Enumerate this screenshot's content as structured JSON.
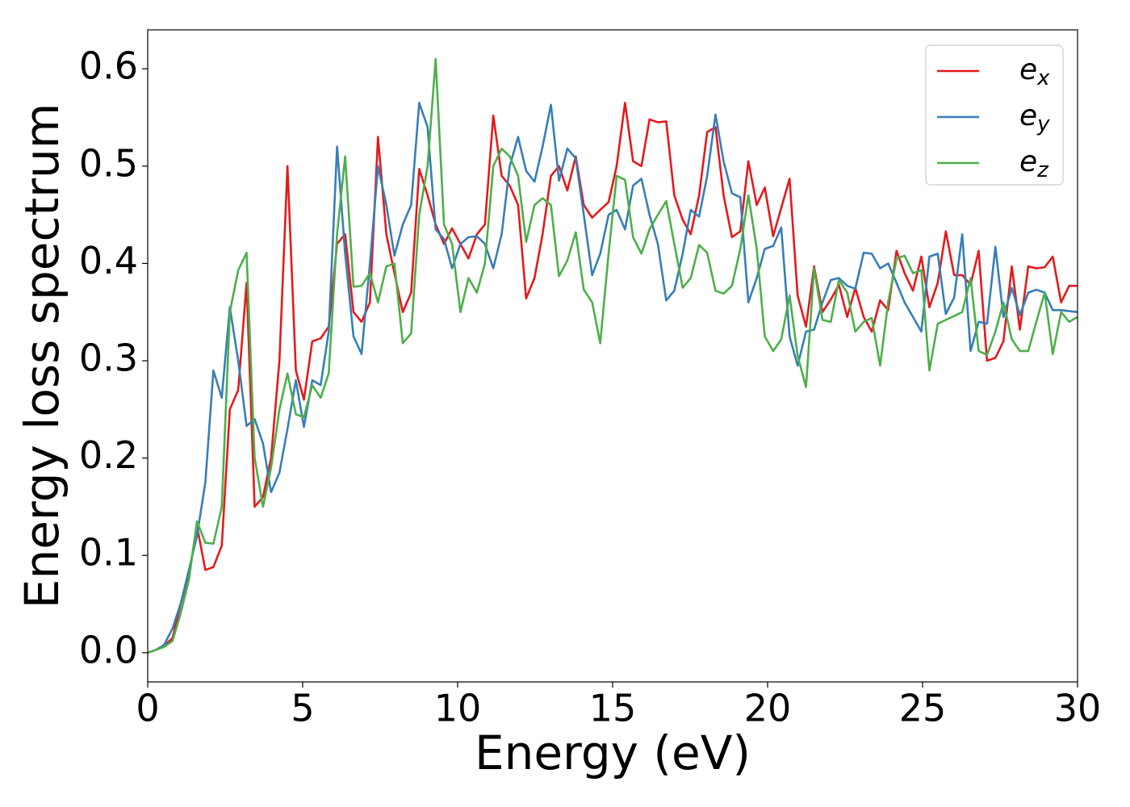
{
  "chart_data": {
    "type": "line",
    "xlabel": "Energy (eV)",
    "ylabel": "Energy loss spectrum",
    "xlim": [
      0,
      30
    ],
    "ylim": [
      -0.03,
      0.64
    ],
    "xticks": [
      0,
      5,
      10,
      15,
      20,
      25,
      30
    ],
    "yticks": [
      {
        "value": 0,
        "label": "0.0"
      },
      0.1,
      0.2,
      0.3,
      0.4,
      0.5,
      0.6
    ],
    "legend": "upper right",
    "grid": false,
    "x": [
      0,
      0.27,
      0.53,
      0.8,
      1.06,
      1.33,
      1.59,
      1.86,
      2.12,
      2.39,
      2.65,
      2.92,
      3.19,
      3.45,
      3.72,
      3.98,
      4.25,
      4.51,
      4.78,
      5.04,
      5.31,
      5.58,
      5.84,
      6.11,
      6.37,
      6.64,
      6.9,
      7.17,
      7.43,
      7.7,
      7.96,
      8.23,
      8.5,
      8.76,
      9.03,
      9.29,
      9.56,
      9.82,
      10.09,
      10.35,
      10.62,
      10.88,
      11.15,
      11.42,
      11.68,
      11.95,
      12.21,
      12.48,
      12.74,
      13.01,
      13.27,
      13.54,
      13.81,
      14.07,
      14.34,
      14.6,
      14.87,
      15.13,
      15.4,
      15.66,
      15.93,
      16.19,
      16.46,
      16.73,
      16.99,
      17.26,
      17.52,
      17.79,
      18.05,
      18.32,
      18.58,
      18.85,
      19.12,
      19.38,
      19.65,
      19.91,
      20.18,
      20.44,
      20.71,
      20.97,
      21.24,
      21.5,
      21.77,
      22.04,
      22.3,
      22.57,
      22.83,
      23.1,
      23.36,
      23.63,
      23.89,
      24.16,
      24.42,
      24.69,
      24.96,
      25.22,
      25.49,
      25.75,
      26.02,
      26.28,
      26.55,
      26.81,
      27.08,
      27.35,
      27.61,
      27.88,
      28.14,
      28.41,
      28.67,
      28.94,
      29.2,
      29.47,
      29.73,
      30
    ],
    "series": [
      {
        "name": "e_x",
        "color": "#e41a1c",
        "values": [
          0,
          0.003,
          0.007,
          0.015,
          0.05,
          0.08,
          0.13,
          0.085,
          0.088,
          0.11,
          0.25,
          0.27,
          0.38,
          0.15,
          0.16,
          0.2,
          0.3,
          0.5,
          0.29,
          0.26,
          0.32,
          0.323,
          0.335,
          0.42,
          0.43,
          0.35,
          0.34,
          0.36,
          0.53,
          0.43,
          0.39,
          0.35,
          0.37,
          0.497,
          0.47,
          0.44,
          0.42,
          0.436,
          0.42,
          0.405,
          0.43,
          0.44,
          0.552,
          0.49,
          0.48,
          0.46,
          0.364,
          0.385,
          0.43,
          0.49,
          0.5,
          0.475,
          0.51,
          0.46,
          0.447,
          0.455,
          0.463,
          0.5,
          0.565,
          0.505,
          0.5,
          0.548,
          0.545,
          0.546,
          0.47,
          0.445,
          0.43,
          0.47,
          0.535,
          0.54,
          0.47,
          0.427,
          0.433,
          0.505,
          0.46,
          0.478,
          0.428,
          0.457,
          0.487,
          0.367,
          0.335,
          0.397,
          0.35,
          0.363,
          0.378,
          0.345,
          0.375,
          0.345,
          0.33,
          0.362,
          0.352,
          0.413,
          0.39,
          0.372,
          0.407,
          0.355,
          0.38,
          0.433,
          0.388,
          0.388,
          0.378,
          0.413,
          0.3,
          0.303,
          0.32,
          0.397,
          0.332,
          0.397,
          0.395,
          0.396,
          0.407,
          0.36,
          0.377,
          0.377
        ]
      },
      {
        "name": "e_y",
        "color": "#377eb8",
        "values": [
          0,
          0.003,
          0.008,
          0.025,
          0.05,
          0.085,
          0.12,
          0.175,
          0.29,
          0.262,
          0.355,
          0.3,
          0.233,
          0.24,
          0.215,
          0.165,
          0.185,
          0.23,
          0.28,
          0.232,
          0.28,
          0.275,
          0.33,
          0.52,
          0.41,
          0.325,
          0.307,
          0.4,
          0.5,
          0.46,
          0.408,
          0.44,
          0.46,
          0.565,
          0.54,
          0.435,
          0.425,
          0.395,
          0.42,
          0.427,
          0.428,
          0.42,
          0.395,
          0.43,
          0.5,
          0.53,
          0.495,
          0.484,
          0.52,
          0.563,
          0.485,
          0.518,
          0.508,
          0.45,
          0.388,
          0.41,
          0.45,
          0.455,
          0.435,
          0.48,
          0.487,
          0.45,
          0.42,
          0.362,
          0.372,
          0.41,
          0.455,
          0.448,
          0.49,
          0.553,
          0.505,
          0.472,
          0.468,
          0.36,
          0.385,
          0.415,
          0.418,
          0.437,
          0.325,
          0.295,
          0.33,
          0.332,
          0.36,
          0.383,
          0.385,
          0.377,
          0.374,
          0.411,
          0.41,
          0.395,
          0.4,
          0.38,
          0.36,
          0.345,
          0.33,
          0.407,
          0.41,
          0.348,
          0.365,
          0.43,
          0.31,
          0.34,
          0.338,
          0.417,
          0.345,
          0.375,
          0.347,
          0.37,
          0.373,
          0.37,
          0.352,
          0.352,
          0.351,
          0.35
        ]
      },
      {
        "name": "e_z",
        "color": "#4daf4a",
        "values": [
          0,
          0.003,
          0.006,
          0.012,
          0.04,
          0.075,
          0.135,
          0.113,
          0.112,
          0.15,
          0.35,
          0.393,
          0.411,
          0.2,
          0.15,
          0.19,
          0.25,
          0.287,
          0.245,
          0.242,
          0.275,
          0.262,
          0.287,
          0.43,
          0.51,
          0.376,
          0.377,
          0.39,
          0.36,
          0.397,
          0.4,
          0.318,
          0.328,
          0.45,
          0.5,
          0.61,
          0.44,
          0.42,
          0.35,
          0.385,
          0.37,
          0.4,
          0.5,
          0.518,
          0.51,
          0.49,
          0.422,
          0.46,
          0.467,
          0.46,
          0.387,
          0.403,
          0.432,
          0.373,
          0.36,
          0.318,
          0.41,
          0.49,
          0.486,
          0.427,
          0.41,
          0.435,
          0.45,
          0.464,
          0.42,
          0.375,
          0.385,
          0.419,
          0.411,
          0.372,
          0.369,
          0.377,
          0.415,
          0.47,
          0.415,
          0.325,
          0.31,
          0.322,
          0.367,
          0.305,
          0.273,
          0.395,
          0.342,
          0.34,
          0.383,
          0.37,
          0.33,
          0.34,
          0.344,
          0.295,
          0.36,
          0.405,
          0.408,
          0.39,
          0.393,
          0.29,
          0.338,
          0.342,
          0.346,
          0.35,
          0.385,
          0.31,
          0.306,
          0.33,
          0.36,
          0.322,
          0.31,
          0.31,
          0.34,
          0.37,
          0.307,
          0.35,
          0.34,
          0.345
        ]
      }
    ]
  }
}
